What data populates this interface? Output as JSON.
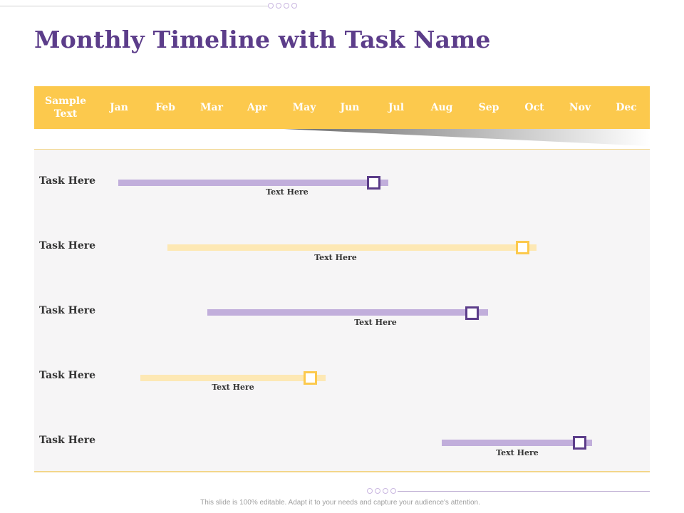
{
  "slide": {
    "title": "Monthly Timeline with Task Name",
    "footer": "This slide is 100% editable. Adapt it to your needs and capture your audience's attention."
  },
  "header": {
    "sample_text": "Sample\nText",
    "months": [
      "Jan",
      "Feb",
      "Mar",
      "Apr",
      "May",
      "Jun",
      "Jul",
      "Aug",
      "Sep",
      "Oct",
      "Nov",
      "Dec"
    ]
  },
  "tasks": [
    {
      "label": "Task Here",
      "text": "Text Here",
      "color": "purple"
    },
    {
      "label": "Task Here",
      "text": "Text Here",
      "color": "yellow"
    },
    {
      "label": "Task Here",
      "text": "Text Here",
      "color": "purple"
    },
    {
      "label": "Task Here",
      "text": "Text Here",
      "color": "yellow"
    },
    {
      "label": "Task Here",
      "text": "Text Here",
      "color": "purple"
    }
  ],
  "colors": {
    "accent_purple": "#5c3d8a",
    "bar_purple": "#c1aedb",
    "accent_yellow": "#fcc94d",
    "bar_yellow": "#fde8b4"
  }
}
